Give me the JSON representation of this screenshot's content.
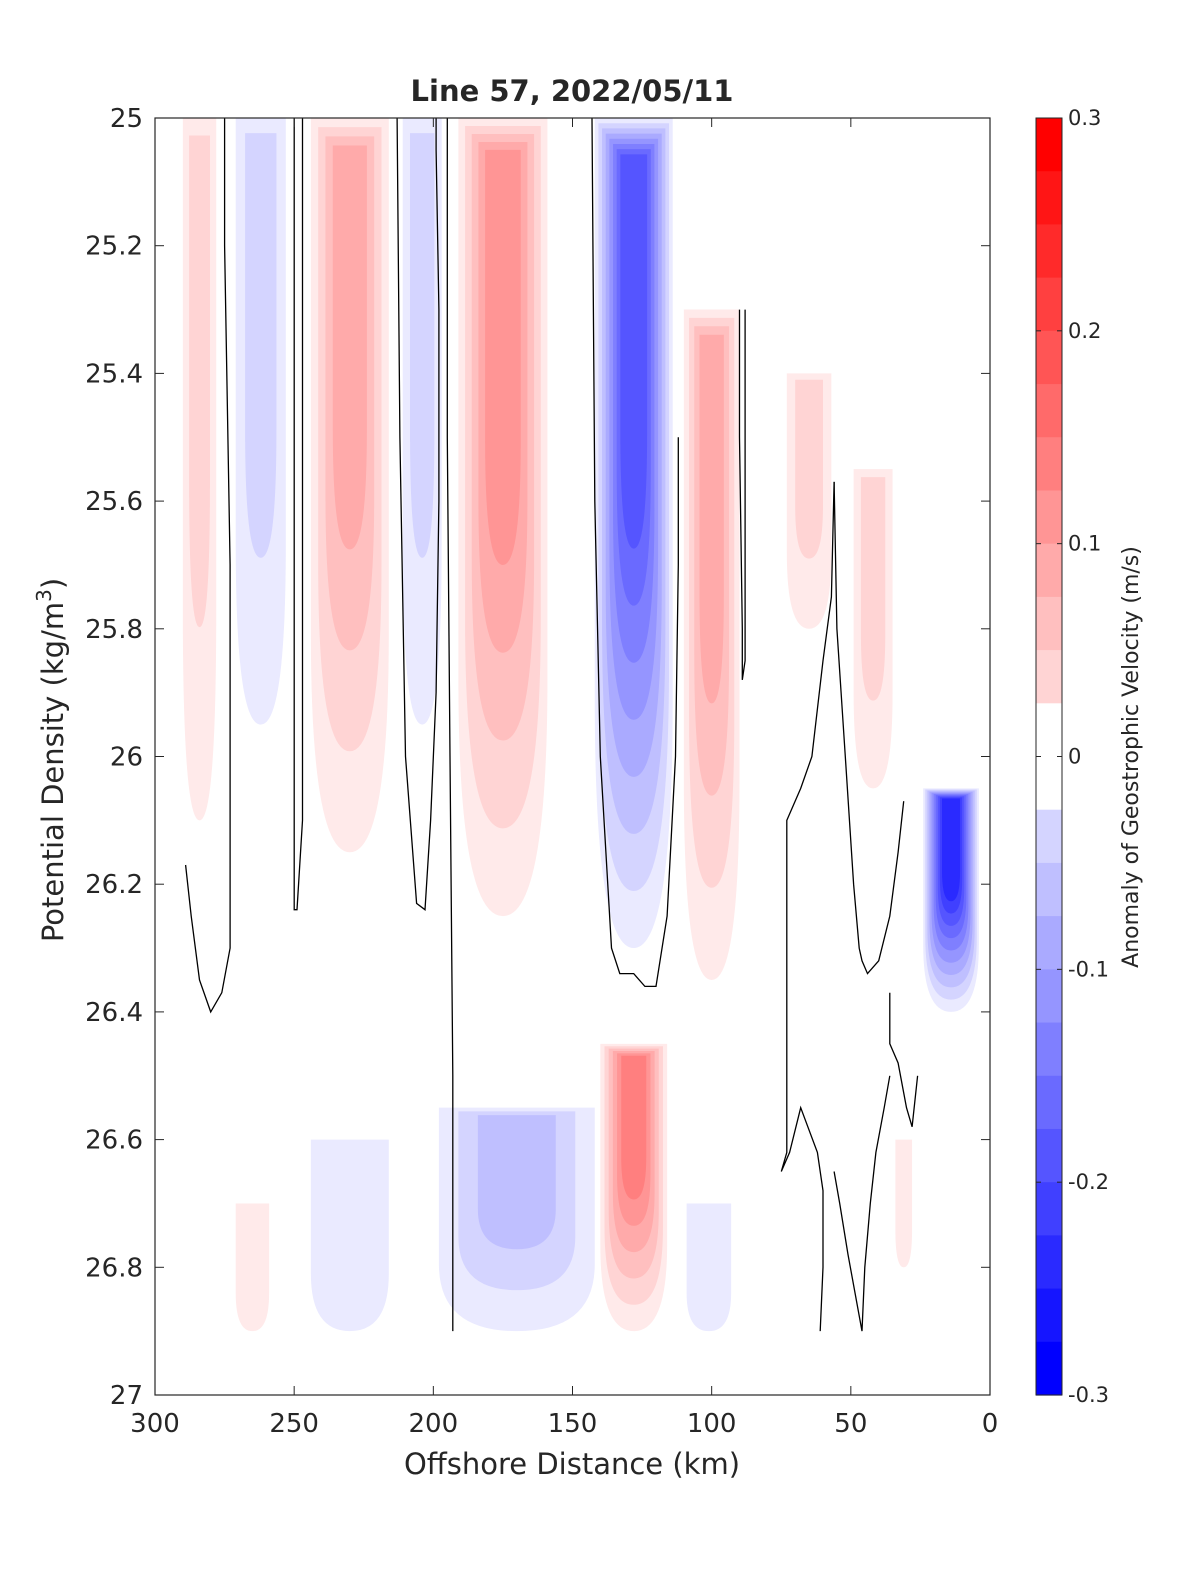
{
  "chart_data": {
    "type": "heatmap",
    "title": "Line 57, 2022/05/11",
    "xlabel": "Offshore Distance (km)",
    "ylabel_main": "Potential Density (kg/m",
    "ylabel_sup": "3",
    "ylabel_close": ")",
    "colorbar_label": "Anomaly of Geostrophic Velocity (m/s)",
    "x_reversed": true,
    "xlim": [
      300,
      0
    ],
    "ylim": [
      25,
      27
    ],
    "y_reversed": true,
    "x_ticks": [
      "300",
      "250",
      "200",
      "150",
      "100",
      "50",
      "0"
    ],
    "x_tick_values": [
      300,
      250,
      200,
      150,
      100,
      50,
      0
    ],
    "y_ticks": [
      "25",
      "25.2",
      "25.4",
      "25.6",
      "25.8",
      "26",
      "26.2",
      "26.4",
      "26.6",
      "26.8",
      "27"
    ],
    "y_tick_values": [
      25,
      25.2,
      25.4,
      25.6,
      25.8,
      26,
      26.2,
      26.4,
      26.6,
      26.8,
      27
    ],
    "colorbar_ticks": [
      "0.3",
      "0.2",
      "0.1",
      "0",
      "-0.1",
      "-0.2",
      "-0.3"
    ],
    "colorbar_tick_values": [
      0.3,
      0.2,
      0.1,
      0,
      -0.1,
      -0.2,
      -0.3
    ],
    "clim": [
      -0.3,
      0.3
    ],
    "contour_step": 0.025,
    "colormap": "blue-white-red",
    "colors": {
      "negative": "#0000ff",
      "zero": "#ffffff",
      "positive": "#ff0000",
      "contour": "#000000"
    },
    "grid": false,
    "features": [
      {
        "name": "positive-core-285",
        "x_center": 284,
        "x_halfwidth": 6,
        "y_top": 25.0,
        "y_bottom": 26.1,
        "peak": 0.06
      },
      {
        "name": "negative-core-262",
        "x_center": 262,
        "x_halfwidth": 9,
        "y_top": 25.0,
        "y_bottom": 25.95,
        "peak": -0.07
      },
      {
        "name": "positive-core-230",
        "x_center": 230,
        "x_halfwidth": 14,
        "y_top": 25.0,
        "y_bottom": 26.15,
        "peak": 0.1
      },
      {
        "name": "negative-core-204",
        "x_center": 204,
        "x_halfwidth": 7,
        "y_top": 25.0,
        "y_bottom": 25.95,
        "peak": -0.06
      },
      {
        "name": "positive-core-175",
        "x_center": 175,
        "x_halfwidth": 16,
        "y_top": 25.0,
        "y_bottom": 26.25,
        "peak": 0.14
      },
      {
        "name": "negative-jet-130",
        "x_center": 128,
        "x_halfwidth": 14,
        "y_top": 25.0,
        "y_bottom": 26.3,
        "peak": -0.22
      },
      {
        "name": "positive-core-100",
        "x_center": 100,
        "x_halfwidth": 10,
        "y_top": 25.3,
        "y_bottom": 26.35,
        "peak": 0.1
      },
      {
        "name": "positive-core-65",
        "x_center": 65,
        "x_halfwidth": 8,
        "y_top": 25.4,
        "y_bottom": 25.8,
        "peak": 0.05
      },
      {
        "name": "positive-core-42",
        "x_center": 42,
        "x_halfwidth": 7,
        "y_top": 25.55,
        "y_bottom": 26.05,
        "peak": 0.07
      },
      {
        "name": "negative-core-18",
        "x_center": 14,
        "x_halfwidth": 10,
        "y_top": 26.05,
        "y_bottom": 26.4,
        "peak": -0.25
      },
      {
        "name": "negative-deep-175",
        "x_center": 170,
        "x_halfwidth": 28,
        "y_top": 26.55,
        "y_bottom": 26.9,
        "peak": -0.08
      },
      {
        "name": "positive-deep-128",
        "x_center": 128,
        "x_halfwidth": 12,
        "y_top": 26.45,
        "y_bottom": 26.9,
        "peak": 0.16
      },
      {
        "name": "negative-deep-100",
        "x_center": 101,
        "x_halfwidth": 8,
        "y_top": 26.7,
        "y_bottom": 26.9,
        "peak": -0.04
      },
      {
        "name": "negative-deep-230",
        "x_center": 230,
        "x_halfwidth": 14,
        "y_top": 26.6,
        "y_bottom": 26.9,
        "peak": -0.04
      },
      {
        "name": "positive-deep-265",
        "x_center": 265,
        "x_halfwidth": 6,
        "y_top": 26.7,
        "y_bottom": 26.9,
        "peak": 0.04
      },
      {
        "name": "positive-deep-30",
        "x_center": 31,
        "x_halfwidth": 3,
        "y_top": 26.6,
        "y_bottom": 26.8,
        "peak": 0.04
      }
    ],
    "zero_contours": [
      {
        "x": [
          289,
          287,
          284,
          280,
          276,
          273,
          273,
          275,
          275,
          275
        ],
        "y": [
          26.17,
          26.25,
          26.35,
          26.4,
          26.37,
          26.3,
          25.7,
          25.2,
          25.01,
          25.0
        ]
      },
      {
        "x": [
          250,
          250,
          250,
          249,
          249,
          247,
          247,
          247
        ],
        "y": [
          25.0,
          25.6,
          26.24,
          26.24,
          26.24,
          26.1,
          25.5,
          25.0
        ]
      },
      {
        "x": [
          213,
          212,
          210,
          206,
          203,
          201,
          199,
          198,
          198,
          199,
          199
        ],
        "y": [
          25.0,
          25.5,
          26.0,
          26.23,
          26.24,
          26.1,
          25.9,
          25.6,
          25.3,
          25.05,
          25.0
        ]
      },
      {
        "x": [
          195,
          195,
          194,
          193,
          193
        ],
        "y": [
          25.0,
          25.5,
          26.0,
          26.5,
          26.9
        ]
      },
      {
        "x": [
          143,
          142,
          140,
          136,
          133,
          128,
          124,
          120,
          116,
          113,
          112,
          112
        ],
        "y": [
          25.0,
          25.6,
          26.0,
          26.3,
          26.34,
          26.34,
          26.36,
          26.36,
          26.25,
          26.0,
          25.7,
          25.5
        ]
      },
      {
        "x": [
          90,
          90,
          89,
          89,
          88,
          88
        ],
        "y": [
          25.3,
          25.5,
          25.8,
          25.88,
          25.85,
          25.3
        ]
      },
      {
        "x": [
          56,
          57,
          60,
          64,
          68,
          73,
          73,
          73,
          75,
          72,
          68,
          62,
          60,
          60,
          61
        ],
        "y": [
          25.57,
          25.75,
          25.85,
          26.0,
          26.05,
          26.1,
          26.5,
          26.62,
          26.65,
          26.62,
          26.55,
          26.62,
          26.68,
          26.8,
          26.9
        ]
      },
      {
        "x": [
          56,
          55,
          52,
          49,
          47,
          46,
          44,
          40,
          36,
          33,
          31
        ],
        "y": [
          25.57,
          25.8,
          26.0,
          26.2,
          26.3,
          26.32,
          26.34,
          26.32,
          26.25,
          26.15,
          26.07
        ]
      },
      {
        "x": [
          36,
          36,
          33,
          30,
          28,
          26
        ],
        "y": [
          26.37,
          26.45,
          26.48,
          26.55,
          26.58,
          26.5
        ]
      },
      {
        "x": [
          36,
          38,
          41,
          43,
          45,
          46,
          51,
          54,
          56
        ],
        "y": [
          26.5,
          26.55,
          26.62,
          26.7,
          26.8,
          26.9,
          26.78,
          26.7,
          26.65
        ]
      }
    ]
  }
}
